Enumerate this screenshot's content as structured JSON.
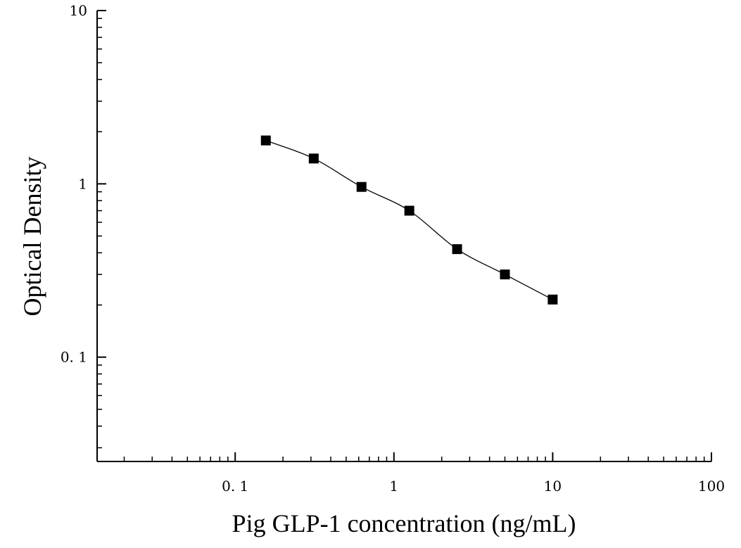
{
  "chart_data": {
    "type": "scatter",
    "title": "",
    "xlabel": "Pig GLP-1 concentration (ng/mL)",
    "ylabel": "Optical Density",
    "x_scale": "log",
    "y_scale": "log",
    "xlim": [
      0.0135,
      100
    ],
    "ylim": [
      0.025,
      10
    ],
    "x_ticks": [
      {
        "value": 0.1,
        "label": "0. 1"
      },
      {
        "value": 1,
        "label": "1"
      },
      {
        "value": 10,
        "label": "10"
      },
      {
        "value": 100,
        "label": "100"
      }
    ],
    "y_ticks": [
      {
        "value": 0.1,
        "label": "0. 1"
      },
      {
        "value": 1,
        "label": "1"
      },
      {
        "value": 10,
        "label": "10"
      }
    ],
    "grid": false,
    "legend": "none",
    "series": [
      {
        "x": [
          0.156,
          0.3125,
          0.625,
          1.25,
          2.5,
          5,
          10
        ],
        "y": [
          1.78,
          1.4,
          0.96,
          0.7,
          0.42,
          0.3,
          0.215
        ],
        "marker": "square",
        "color": "#000000",
        "fit_curve": true
      }
    ]
  }
}
